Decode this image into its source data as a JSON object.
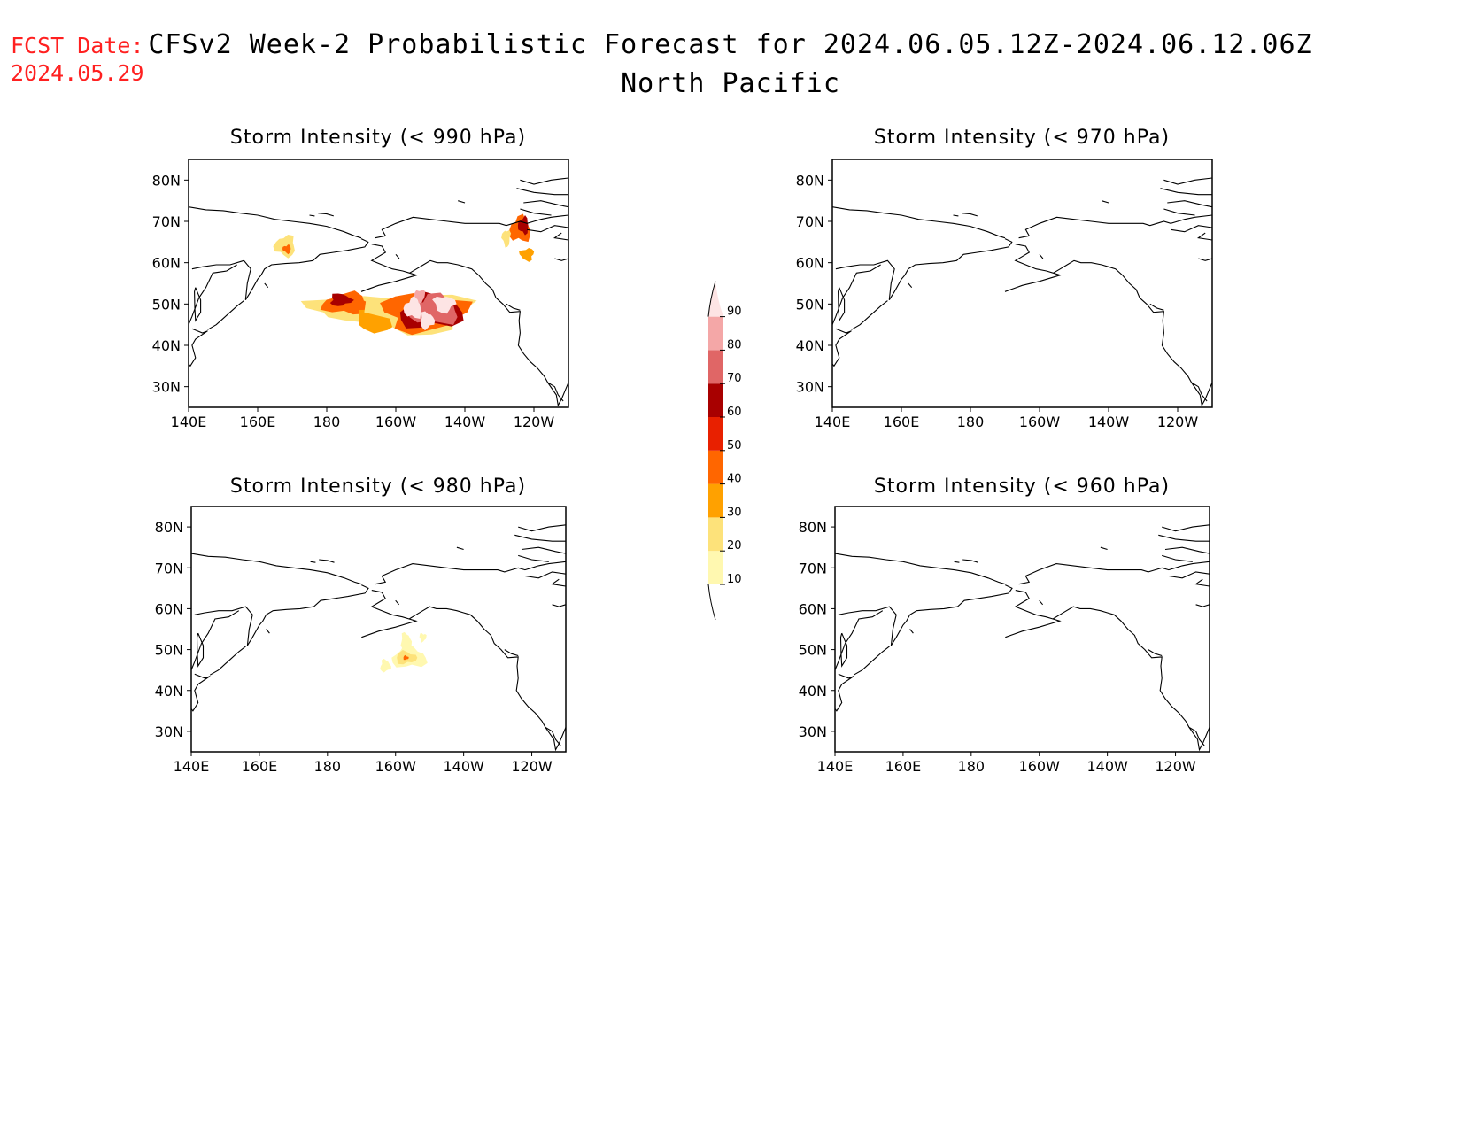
{
  "fcst_date": {
    "label": "FCST Date:",
    "value": "2024.05.29"
  },
  "title": "CFSv2 Week-2 Probabilistic Forecast for 2024.06.05.12Z-2024.06.12.06Z",
  "subtitle": "North Pacific",
  "colors": {
    "fcst": "#ff2020",
    "coast": "#000000"
  },
  "colorbar": {
    "levels": [
      "10",
      "20",
      "30",
      "40",
      "50",
      "60",
      "70",
      "80",
      "90"
    ],
    "colors": [
      "#fff8b0",
      "#fde27a",
      "#ffa100",
      "#ff6600",
      "#e82000",
      "#a80000",
      "#e06666",
      "#f4a7a7",
      "#fde4e4"
    ]
  },
  "axes": {
    "lon_labels": [
      "140E",
      "160E",
      "180",
      "160W",
      "140W",
      "120W"
    ],
    "lat_labels": [
      "80N",
      "70N",
      "60N",
      "50N",
      "40N",
      "30N"
    ]
  },
  "panels": [
    {
      "id": "p990",
      "title": "Storm Intensity (< 990 hPa)",
      "blobs": [
        {
          "lon": 168,
          "lat": 64,
          "rx": 3,
          "ry": 2.5,
          "level": 1
        },
        {
          "lon": 168.5,
          "lat": 63.3,
          "rx": 1.2,
          "ry": 1,
          "level": 3
        },
        {
          "lon": 236,
          "lat": 68,
          "rx": 3,
          "ry": 3,
          "level": 3
        },
        {
          "lon": 237,
          "lat": 69,
          "rx": 1.5,
          "ry": 2,
          "level": 5
        },
        {
          "lon": 238,
          "lat": 62,
          "rx": 2,
          "ry": 1.5,
          "level": 2
        },
        {
          "lon": 232,
          "lat": 66,
          "rx": 1.2,
          "ry": 2,
          "level": 1
        },
        {
          "lon": 188,
          "lat": 49,
          "rx": 13,
          "ry": 3,
          "level": 1
        },
        {
          "lon": 186,
          "lat": 50,
          "rx": 7,
          "ry": 2.5,
          "level": 3
        },
        {
          "lon": 184,
          "lat": 51,
          "rx": 3,
          "ry": 1.5,
          "level": 5
        },
        {
          "lon": 196,
          "lat": 46,
          "rx": 8,
          "ry": 2.5,
          "level": 2
        },
        {
          "lon": 207,
          "lat": 48,
          "rx": 14,
          "ry": 5,
          "level": 1
        },
        {
          "lon": 208,
          "lat": 48,
          "rx": 12,
          "ry": 4.5,
          "level": 3
        },
        {
          "lon": 210,
          "lat": 48,
          "rx": 9,
          "ry": 4,
          "level": 5
        },
        {
          "lon": 211,
          "lat": 48.5,
          "rx": 7,
          "ry": 3.5,
          "level": 6
        },
        {
          "lon": 205,
          "lat": 49,
          "rx": 2.5,
          "ry": 2.5,
          "level": 8
        },
        {
          "lon": 214,
          "lat": 50,
          "rx": 3,
          "ry": 2,
          "level": 8
        },
        {
          "lon": 209,
          "lat": 46,
          "rx": 2,
          "ry": 2,
          "level": 8
        },
        {
          "lon": 207,
          "lat": 52,
          "rx": 1.5,
          "ry": 1.5,
          "level": 7
        }
      ]
    },
    {
      "id": "p970",
      "title": "Storm Intensity (< 970 hPa)",
      "blobs": []
    },
    {
      "id": "p980",
      "title": "Storm Intensity (< 980 hPa)",
      "blobs": [
        {
          "lon": 204,
          "lat": 48,
          "rx": 5,
          "ry": 2.5,
          "level": 0
        },
        {
          "lon": 203,
          "lat": 52,
          "rx": 1.5,
          "ry": 2,
          "level": 0
        },
        {
          "lon": 197,
          "lat": 46,
          "rx": 1.5,
          "ry": 1.5,
          "level": 0
        },
        {
          "lon": 208,
          "lat": 53,
          "rx": 1,
          "ry": 1,
          "level": 0
        },
        {
          "lon": 203,
          "lat": 48,
          "rx": 3,
          "ry": 1.5,
          "level": 1
        },
        {
          "lon": 203,
          "lat": 48,
          "rx": 0.8,
          "ry": 0.5,
          "level": 3
        }
      ]
    },
    {
      "id": "p960",
      "title": "Storm Intensity (< 960 hPa)",
      "blobs": []
    }
  ]
}
